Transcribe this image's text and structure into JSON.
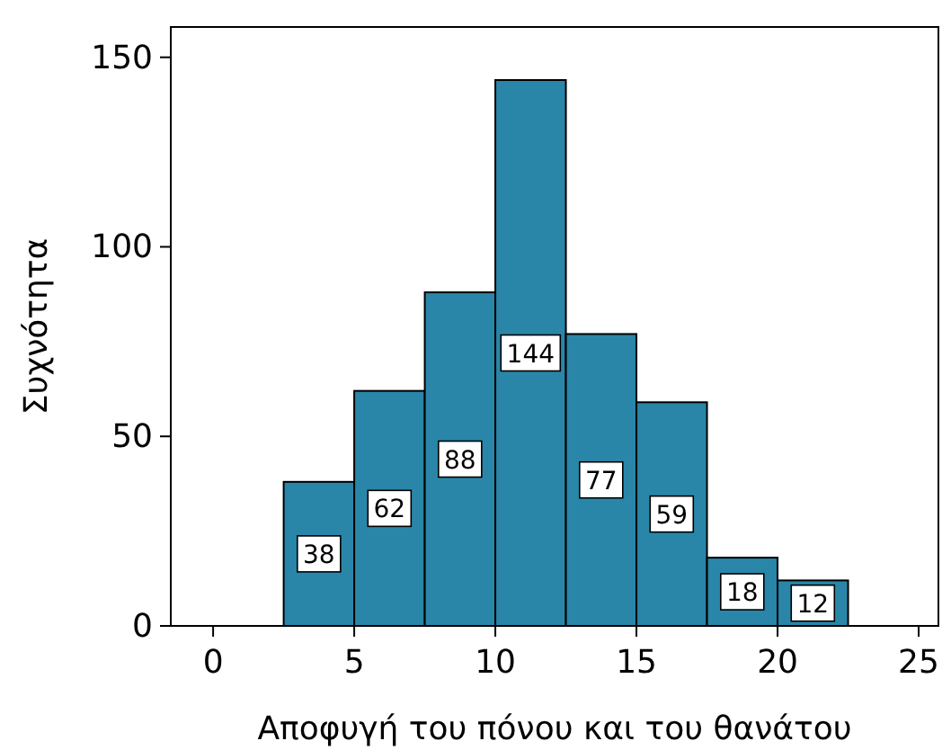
{
  "chart_data": {
    "type": "histogram",
    "xlabel": "Αποφυγή του πόνου και του θανάτου",
    "ylabel": "Συχνότητα",
    "bins": [
      2.5,
      5,
      7.5,
      10,
      12.5,
      15,
      17.5,
      20,
      22.5
    ],
    "values": [
      38,
      62,
      88,
      144,
      77,
      59,
      18,
      12
    ],
    "color": "#2986a8",
    "data_labels": true,
    "xlim": [
      -1.5,
      25.7
    ],
    "xticks": [
      0,
      5,
      10,
      15,
      20,
      25
    ],
    "ylim": [
      0,
      158
    ],
    "yticks": [
      0,
      50,
      100,
      150
    ],
    "grid": false
  }
}
